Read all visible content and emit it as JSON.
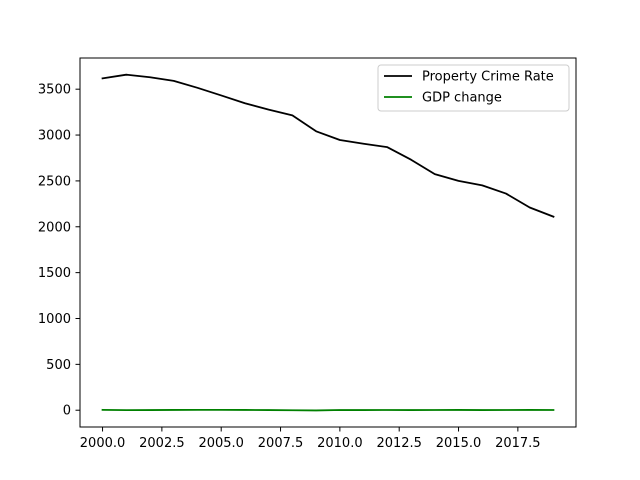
{
  "chart_data": {
    "type": "line",
    "title": "",
    "xlabel": "",
    "ylabel": "",
    "x": [
      2000,
      2001,
      2002,
      2003,
      2004,
      2005,
      2006,
      2007,
      2008,
      2009,
      2010,
      2011,
      2012,
      2013,
      2014,
      2015,
      2016,
      2017,
      2018,
      2019
    ],
    "xlim": [
      1999.05,
      2019.95
    ],
    "ylim": [
      -183,
      3840
    ],
    "xticks": [
      2000.0,
      2002.5,
      2005.0,
      2007.5,
      2010.0,
      2012.5,
      2015.0,
      2017.5
    ],
    "xtick_labels": [
      "2000.0",
      "2002.5",
      "2005.0",
      "2007.5",
      "2010.0",
      "2012.5",
      "2015.0",
      "2017.5"
    ],
    "yticks": [
      0,
      500,
      1000,
      1500,
      2000,
      2500,
      3000,
      3500
    ],
    "ytick_labels": [
      "0",
      "500",
      "1000",
      "1500",
      "2000",
      "2500",
      "3000",
      "3500"
    ],
    "grid": false,
    "legend_position": "top-right",
    "series": [
      {
        "name": "Property Crime Rate",
        "color": "#000000",
        "values": [
          3618,
          3658,
          3630,
          3591,
          3515,
          3432,
          3347,
          3277,
          3215,
          3041,
          2946,
          2905,
          2868,
          2731,
          2574,
          2500,
          2451,
          2362,
          2210,
          2110
        ]
      },
      {
        "name": "GDP change",
        "color": "#008000",
        "values": [
          4.1,
          1.0,
          1.7,
          2.9,
          3.8,
          3.5,
          2.9,
          1.9,
          -0.1,
          -2.5,
          2.6,
          1.6,
          2.2,
          1.8,
          2.5,
          2.9,
          1.7,
          2.4,
          2.9,
          2.3
        ]
      }
    ]
  }
}
